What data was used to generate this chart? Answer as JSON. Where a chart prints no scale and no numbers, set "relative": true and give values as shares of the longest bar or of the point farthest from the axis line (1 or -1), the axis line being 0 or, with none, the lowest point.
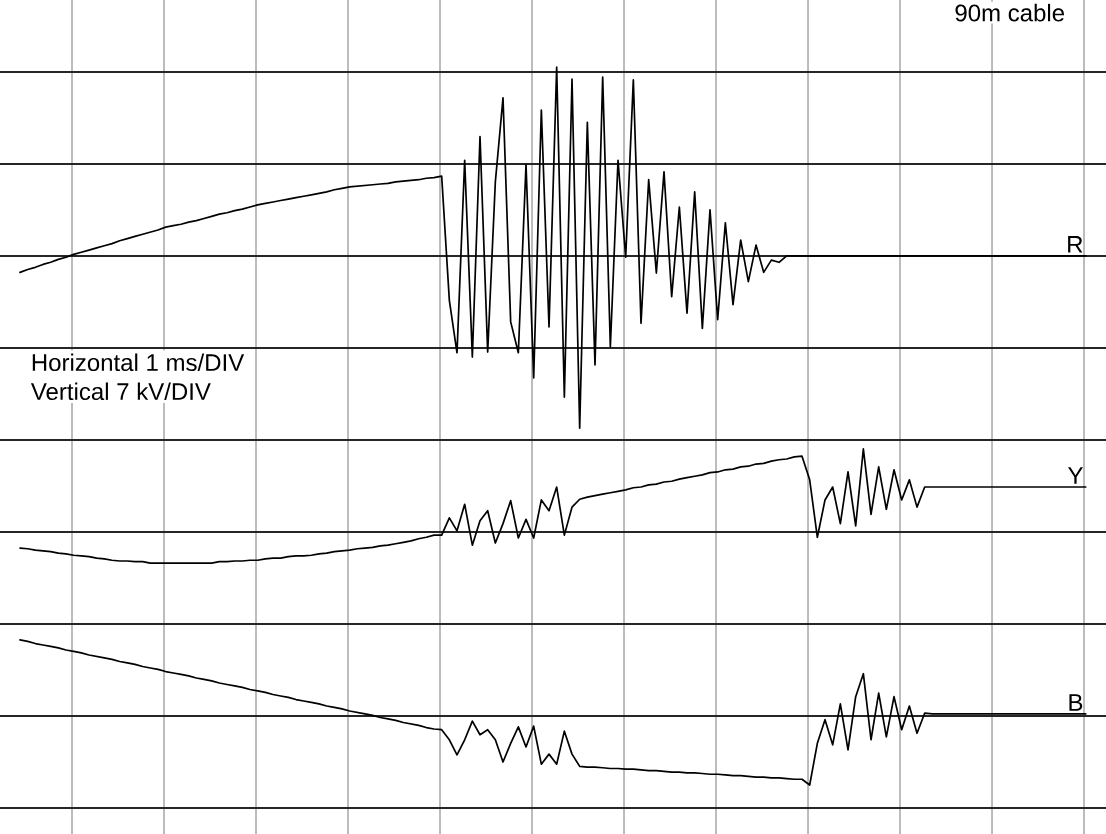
{
  "chart_data": {
    "type": "line",
    "relative": true,
    "grid": true,
    "annotations": [
      "90m cable",
      "Horizontal 1 ms/DIV",
      "Vertical 7 kV/DIV"
    ],
    "categories": [
      null,
      null,
      null,
      null,
      null,
      null,
      null,
      null,
      null,
      null,
      null,
      null,
      null,
      null,
      null,
      null,
      null,
      null,
      null,
      null,
      null,
      null,
      null,
      null,
      null,
      null,
      null,
      null,
      null,
      null,
      null,
      null,
      null,
      null,
      null,
      null,
      null,
      null,
      null,
      null,
      null,
      null,
      null,
      null,
      null,
      null,
      null,
      null,
      null,
      null,
      null,
      null,
      null,
      null,
      null,
      null,
      null,
      null,
      null,
      null,
      null,
      null,
      null,
      null,
      null,
      null,
      null,
      null,
      null,
      null,
      null,
      null,
      null,
      null,
      null,
      null,
      null,
      null,
      null,
      null,
      null,
      null,
      null,
      null,
      null,
      null,
      null,
      null,
      null,
      null,
      null,
      null,
      null,
      null,
      null,
      null,
      null,
      null,
      null,
      null,
      null,
      null,
      null,
      null,
      null,
      null,
      null,
      null,
      null,
      null,
      null,
      null,
      null,
      null,
      null,
      null,
      null,
      null,
      null,
      null,
      null,
      null,
      null,
      null,
      null,
      null,
      null,
      null,
      null,
      null,
      null,
      null,
      null,
      null,
      null,
      null,
      null,
      null,
      null,
      null
    ],
    "series": [
      {
        "name": "R",
        "color": "#000000",
        "values": [
          0.714,
          0.718,
          0.721,
          0.725,
          0.728,
          0.732,
          0.735,
          0.739,
          0.742,
          0.745,
          0.748,
          0.751,
          0.754,
          0.758,
          0.761,
          0.764,
          0.767,
          0.77,
          0.773,
          0.777,
          0.779,
          0.781,
          0.784,
          0.786,
          0.789,
          0.792,
          0.795,
          0.797,
          0.8,
          0.802,
          0.805,
          0.808,
          0.81,
          0.812,
          0.814,
          0.816,
          0.818,
          0.82,
          0.822,
          0.824,
          0.826,
          0.829,
          0.831,
          0.833,
          0.834,
          0.835,
          0.836,
          0.837,
          0.838,
          0.84,
          0.841,
          0.842,
          0.843,
          0.845,
          0.846,
          0.848,
          0.675,
          0.602,
          0.87,
          0.596,
          0.903,
          0.603,
          0.84,
          0.957,
          0.645,
          0.602,
          0.864,
          0.567,
          0.94,
          0.638,
          1.0,
          0.54,
          0.983,
          0.497,
          0.923,
          0.585,
          0.986,
          0.61,
          0.87,
          0.735,
          0.982,
          0.643,
          0.843,
          0.713,
          0.854,
          0.68,
          0.805,
          0.657,
          0.826,
          0.636,
          0.801,
          0.648,
          0.783,
          0.669,
          0.759,
          0.701,
          0.752,
          0.714,
          0.731,
          0.728,
          0.737,
          0.737,
          0.737,
          0.737,
          0.737,
          0.737,
          0.737,
          0.737,
          0.737,
          0.737,
          0.737,
          0.737,
          0.737,
          0.737,
          0.737,
          0.737,
          0.737,
          0.737,
          0.737,
          0.737,
          0.737,
          0.737,
          0.737,
          0.737,
          0.737,
          0.737,
          0.737,
          0.737,
          0.737,
          0.737,
          0.737,
          0.737,
          0.737,
          0.737,
          0.737,
          0.737,
          0.737,
          0.737,
          0.737,
          0.737
        ]
      },
      {
        "name": "Y",
        "color": "#000000",
        "values": [
          0.33,
          0.329,
          0.327,
          0.326,
          0.325,
          0.323,
          0.322,
          0.32,
          0.319,
          0.318,
          0.316,
          0.315,
          0.313,
          0.312,
          0.312,
          0.311,
          0.311,
          0.309,
          0.309,
          0.309,
          0.309,
          0.309,
          0.309,
          0.309,
          0.309,
          0.309,
          0.311,
          0.311,
          0.312,
          0.312,
          0.313,
          0.313,
          0.315,
          0.316,
          0.316,
          0.318,
          0.319,
          0.319,
          0.32,
          0.322,
          0.323,
          0.325,
          0.326,
          0.327,
          0.329,
          0.33,
          0.331,
          0.333,
          0.334,
          0.336,
          0.338,
          0.34,
          0.343,
          0.345,
          0.348,
          0.348,
          0.372,
          0.354,
          0.391,
          0.334,
          0.368,
          0.382,
          0.337,
          0.364,
          0.396,
          0.344,
          0.37,
          0.344,
          0.397,
          0.382,
          0.415,
          0.348,
          0.387,
          0.398,
          0.401,
          0.403,
          0.405,
          0.407,
          0.409,
          0.411,
          0.414,
          0.415,
          0.418,
          0.419,
          0.422,
          0.423,
          0.426,
          0.428,
          0.43,
          0.432,
          0.435,
          0.436,
          0.439,
          0.44,
          0.443,
          0.444,
          0.447,
          0.448,
          0.451,
          0.453,
          0.454,
          0.457,
          0.458,
          0.425,
          0.345,
          0.397,
          0.415,
          0.364,
          0.436,
          0.361,
          0.468,
          0.377,
          0.443,
          0.384,
          0.439,
          0.397,
          0.425,
          0.387,
          0.415,
          0.415,
          0.415,
          0.415,
          0.415,
          0.415,
          0.415,
          0.415,
          0.415,
          0.415,
          0.415,
          0.415,
          0.415,
          0.415,
          0.415,
          0.415,
          0.415,
          0.415,
          0.415,
          0.415,
          0.415,
          0.415
        ]
      },
      {
        "name": "B",
        "color": "#000000",
        "values": [
          0.202,
          0.2,
          0.197,
          0.195,
          0.193,
          0.191,
          0.188,
          0.186,
          0.184,
          0.181,
          0.179,
          0.177,
          0.175,
          0.172,
          0.17,
          0.168,
          0.165,
          0.163,
          0.161,
          0.158,
          0.156,
          0.154,
          0.152,
          0.149,
          0.147,
          0.145,
          0.142,
          0.14,
          0.138,
          0.136,
          0.133,
          0.131,
          0.129,
          0.126,
          0.124,
          0.122,
          0.119,
          0.117,
          0.115,
          0.113,
          0.11,
          0.108,
          0.106,
          0.103,
          0.101,
          0.099,
          0.097,
          0.094,
          0.092,
          0.09,
          0.087,
          0.085,
          0.083,
          0.08,
          0.078,
          0.077,
          0.063,
          0.042,
          0.063,
          0.089,
          0.07,
          0.077,
          0.063,
          0.032,
          0.058,
          0.081,
          0.053,
          0.082,
          0.029,
          0.043,
          0.029,
          0.075,
          0.043,
          0.026,
          0.025,
          0.025,
          0.024,
          0.023,
          0.023,
          0.022,
          0.022,
          0.021,
          0.02,
          0.02,
          0.019,
          0.018,
          0.018,
          0.017,
          0.017,
          0.016,
          0.015,
          0.015,
          0.014,
          0.013,
          0.013,
          0.012,
          0.011,
          0.011,
          0.01,
          0.01,
          0.009,
          0.008,
          0.008,
          0.0,
          0.058,
          0.091,
          0.056,
          0.113,
          0.049,
          0.123,
          0.155,
          0.063,
          0.128,
          0.067,
          0.123,
          0.077,
          0.11,
          0.072,
          0.1,
          0.099,
          0.099,
          0.099,
          0.099,
          0.099,
          0.099,
          0.099,
          0.099,
          0.099,
          0.099,
          0.099,
          0.099,
          0.099,
          0.099,
          0.099,
          0.099,
          0.099,
          0.099,
          0.099,
          0.099,
          0.099
        ]
      }
    ]
  }
}
